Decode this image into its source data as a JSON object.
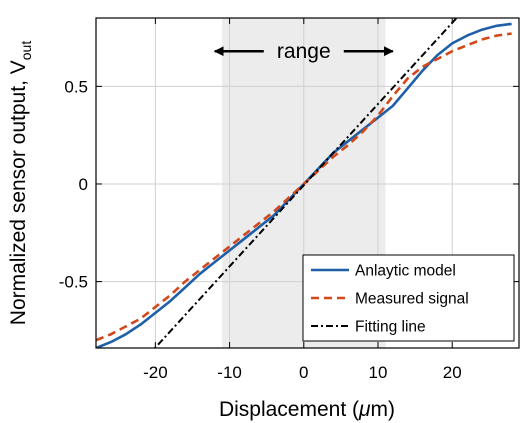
{
  "chart_data": {
    "type": "line",
    "title": "",
    "xlabel_main": "Displacement (",
    "xlabel_mu": "μ",
    "xlabel_rest": "m)",
    "ylabel_main": "Normalized sensor output, V",
    "ylabel_sub": "out",
    "xlim": [
      -28,
      29
    ],
    "ylim": [
      -0.84,
      0.85
    ],
    "x_ticks": [
      -20,
      -10,
      0,
      10,
      20
    ],
    "y_ticks": [
      -0.5,
      0,
      0.5
    ],
    "x_tick_labels": [
      "-20",
      "-10",
      "0",
      "10",
      "20"
    ],
    "y_tick_labels": [
      "-0.5",
      "0",
      "0.5"
    ],
    "grid": true,
    "shaded_range": [
      -11,
      11
    ],
    "annotation": {
      "text": "range",
      "arrow_from": -12,
      "arrow_to": 12,
      "y": 0.68
    },
    "legend_position": "bottom-right",
    "series": [
      {
        "name": "Anlaytic model",
        "style": "solid",
        "color": "#1f5fa8",
        "x": [
          -28,
          -26,
          -24,
          -22,
          -20,
          -18,
          -16,
          -14,
          -12,
          -10,
          -8,
          -6,
          -4,
          -2,
          0,
          2,
          4,
          6,
          8,
          10,
          12,
          14,
          16,
          18,
          20,
          22,
          24,
          26,
          28
        ],
        "y": [
          -0.84,
          -0.81,
          -0.77,
          -0.72,
          -0.66,
          -0.6,
          -0.53,
          -0.46,
          -0.4,
          -0.34,
          -0.28,
          -0.22,
          -0.16,
          -0.08,
          0.0,
          0.08,
          0.16,
          0.22,
          0.28,
          0.34,
          0.4,
          0.49,
          0.58,
          0.66,
          0.72,
          0.76,
          0.79,
          0.81,
          0.82
        ]
      },
      {
        "name": "Measured signal",
        "style": "dashed",
        "color": "#d2481b",
        "x": [
          -28,
          -26,
          -24,
          -22,
          -20,
          -18,
          -16,
          -14,
          -12,
          -10,
          -8,
          -6,
          -4,
          -2,
          0,
          2,
          4,
          6,
          8,
          10,
          12,
          14,
          16,
          18,
          20,
          22,
          24,
          26,
          28
        ],
        "y": [
          -0.8,
          -0.77,
          -0.73,
          -0.69,
          -0.63,
          -0.57,
          -0.5,
          -0.44,
          -0.38,
          -0.32,
          -0.26,
          -0.2,
          -0.14,
          -0.07,
          0.0,
          0.07,
          0.14,
          0.2,
          0.27,
          0.35,
          0.45,
          0.54,
          0.6,
          0.64,
          0.68,
          0.71,
          0.74,
          0.76,
          0.77
        ]
      },
      {
        "name": "Fitting line",
        "style": "dashdot",
        "color": "#000000",
        "x": [
          -21,
          29
        ],
        "y": [
          -0.88,
          1.2
        ]
      }
    ]
  }
}
